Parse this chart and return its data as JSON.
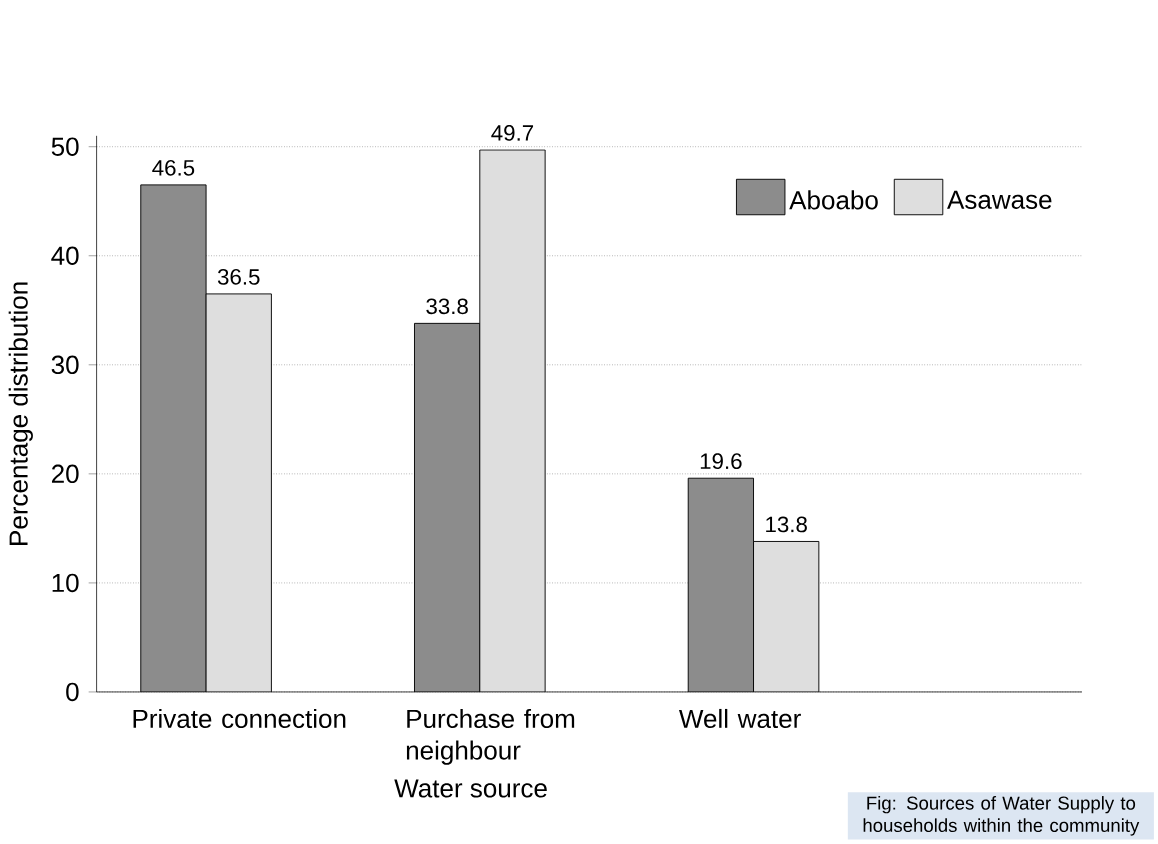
{
  "chart_data": {
    "type": "bar",
    "xlabel": "Water source",
    "ylabel": "Percentage distribution",
    "categories": [
      "Private connection",
      "Purchase from neighbour",
      "Well water"
    ],
    "series": [
      {
        "name": "Aboabo",
        "color": "#8c8c8c",
        "values": [
          46.5,
          33.8,
          19.6
        ]
      },
      {
        "name": "Asawase",
        "color": "#dedede",
        "values": [
          36.5,
          49.7,
          13.8
        ]
      }
    ],
    "ylim": [
      0,
      51
    ],
    "yticks": [
      0,
      10,
      20,
      30,
      40,
      50
    ],
    "grid": "y",
    "legend": "top right",
    "data_labels": true,
    "annotations": [
      "Fig: Sources of Water Supply to households within the community"
    ]
  }
}
